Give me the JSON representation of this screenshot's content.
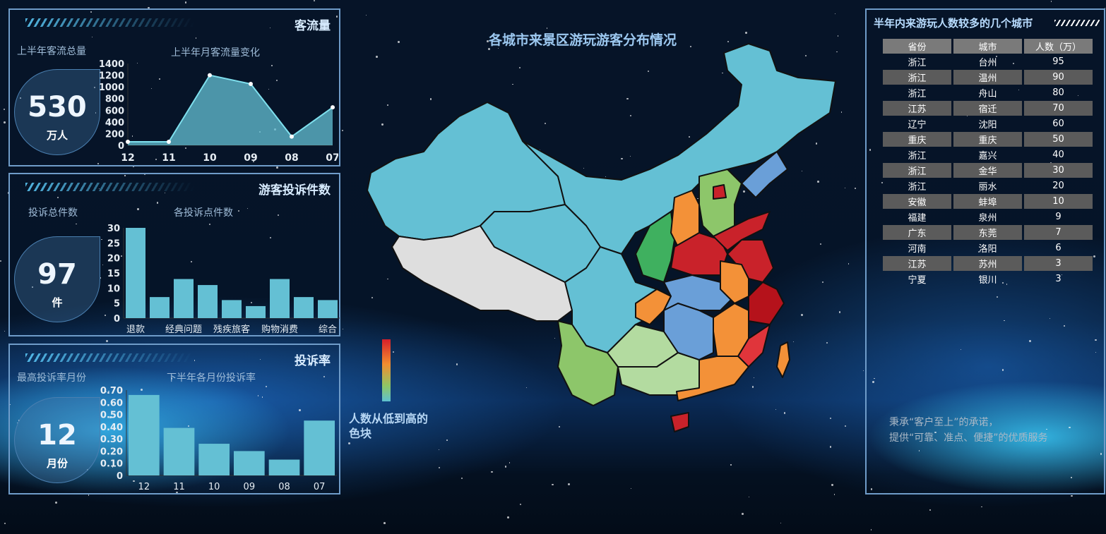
{
  "title": "各城市来景区游玩游客分布情况",
  "panels": {
    "traffic": {
      "title": "客流量",
      "total_label": "上半年客流总量",
      "total": "530",
      "unit": "万人",
      "chart_label": "上半年月客流量变化"
    },
    "complaints": {
      "title": "游客投诉件数",
      "total_label": "投诉总件数",
      "total": "97",
      "unit": "件",
      "chart_label": "各投诉点件数"
    },
    "rate": {
      "title": "投诉率",
      "total_label": "最高投诉率月份",
      "total": "12",
      "unit": "月份",
      "chart_label": "下半年各月份投诉率"
    }
  },
  "legend": {
    "label": "人数从低到高的色块",
    "colors": [
      "#c9222a",
      "#f39138",
      "#8dc66a",
      "#64c0d4"
    ]
  },
  "table": {
    "title": "半年内来游玩人数较多的几个城市",
    "headers": [
      "省份",
      "城市",
      "人数（万）"
    ],
    "rows": [
      [
        "浙江",
        "台州",
        "95"
      ],
      [
        "浙江",
        "温州",
        "90"
      ],
      [
        "浙江",
        "舟山",
        "80"
      ],
      [
        "江苏",
        "宿迁",
        "70"
      ],
      [
        "辽宁",
        "沈阳",
        "60"
      ],
      [
        "重庆",
        "重庆",
        "50"
      ],
      [
        "浙江",
        "嘉兴",
        "40"
      ],
      [
        "浙江",
        "金华",
        "30"
      ],
      [
        "浙江",
        "丽水",
        "20"
      ],
      [
        "安徽",
        "蚌埠",
        "10"
      ],
      [
        "福建",
        "泉州",
        "9"
      ],
      [
        "广东",
        "东莞",
        "7"
      ],
      [
        "河南",
        "洛阳",
        "6"
      ],
      [
        "江苏",
        "苏州",
        "3"
      ],
      [
        "宁夏",
        "银川",
        "3"
      ]
    ]
  },
  "slogan": {
    "line1": "秉承“客户至上”的承诺，",
    "line2": "提供“可靠、准点、便捷”的优质服务"
  },
  "chart_data": [
    {
      "type": "area",
      "categories": [
        "12",
        "11",
        "10",
        "09",
        "08",
        "07"
      ],
      "values": [
        60,
        60,
        1200,
        1050,
        150,
        650
      ],
      "yticks": [
        "1400",
        "1200",
        "1000",
        "800",
        "600",
        "400",
        "200",
        "0"
      ],
      "ylim": [
        0,
        1400
      ],
      "color": "#64c0d4"
    },
    {
      "type": "bar",
      "categories": [
        "退款",
        "",
        "经典问题",
        "",
        "残疾旅客",
        "",
        "购物消费",
        "",
        "综合"
      ],
      "values": [
        30,
        7,
        13,
        11,
        6,
        4,
        13,
        7,
        6
      ],
      "yticks": [
        "30",
        "25",
        "20",
        "15",
        "10",
        "5",
        "0"
      ],
      "ylim": [
        0,
        30
      ],
      "color": "#64c0d4"
    },
    {
      "type": "bar",
      "categories": [
        "12",
        "11",
        "10",
        "09",
        "08",
        "07"
      ],
      "values": [
        0.66,
        0.39,
        0.26,
        0.2,
        0.13,
        0.45
      ],
      "yticks": [
        "0.70",
        "0.60",
        "0.50",
        "0.40",
        "0.30",
        "0.20",
        "0.10",
        "0"
      ],
      "ylim": [
        0,
        0.7
      ],
      "color": "#64c0d4"
    }
  ]
}
